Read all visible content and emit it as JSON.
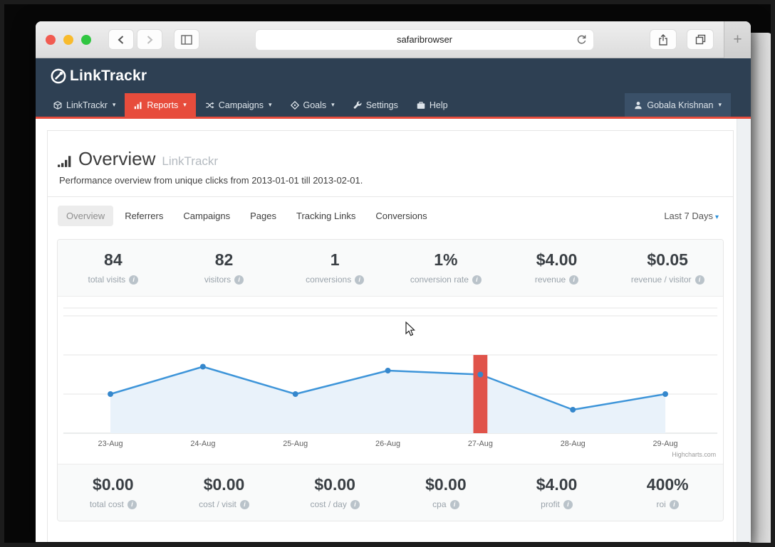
{
  "browser": {
    "url_text": "safaribrowser",
    "traffic_lights": {
      "close": "#f15b51",
      "minimize": "#f8bb2d",
      "zoom": "#30c641"
    }
  },
  "icons": {
    "caret": "▾",
    "info": "i",
    "plus": "+"
  },
  "brand": {
    "logo_text": "LinkTrackr"
  },
  "nav": {
    "items": [
      {
        "label": "LinkTrackr",
        "caret": "▾"
      },
      {
        "label": "Reports",
        "caret": "▾",
        "active": true
      },
      {
        "label": "Campaigns",
        "caret": "▾"
      },
      {
        "label": "Goals",
        "caret": "▾"
      },
      {
        "label": "Settings"
      },
      {
        "label": "Help"
      }
    ],
    "user": {
      "label": "Gobala Krishnan",
      "caret": "▾"
    }
  },
  "page": {
    "title": "Overview",
    "title_suffix": "LinkTrackr",
    "subtitle": "Performance overview from unique clicks from 2013-01-01 till 2013-02-01."
  },
  "tabs": {
    "items": [
      "Overview",
      "Referrers",
      "Campaigns",
      "Pages",
      "Tracking Links",
      "Conversions"
    ],
    "active": "Overview",
    "range_selector": "Last 7 Days"
  },
  "stats_top": [
    {
      "value": "84",
      "label": "total visits"
    },
    {
      "value": "82",
      "label": "visitors"
    },
    {
      "value": "1",
      "label": "conversions"
    },
    {
      "value": "1%",
      "label": "conversion rate"
    },
    {
      "value": "$4.00",
      "label": "revenue"
    },
    {
      "value": "$0.05",
      "label": "revenue / visitor"
    }
  ],
  "stats_bottom": [
    {
      "value": "$0.00",
      "label": "total cost"
    },
    {
      "value": "$0.00",
      "label": "cost / visit"
    },
    {
      "value": "$0.00",
      "label": "cost / day"
    },
    {
      "value": "$0.00",
      "label": "cpa"
    },
    {
      "value": "$4.00",
      "label": "profit"
    },
    {
      "value": "400%",
      "label": "roi"
    }
  ],
  "chart_data": {
    "type": "area",
    "title": "",
    "xlabel": "",
    "ylabel": "",
    "categories": [
      "23-Aug",
      "24-Aug",
      "25-Aug",
      "26-Aug",
      "27-Aug",
      "28-Aug",
      "29-Aug"
    ],
    "series": [
      {
        "name": "unique clicks",
        "values": [
          10,
          17,
          10,
          16,
          15,
          6,
          10
        ]
      }
    ],
    "ylim": [
      0,
      32
    ],
    "gridline_values": [
      10,
      20,
      30
    ],
    "grid": true,
    "legend": "none",
    "event_bar": {
      "category": "27-Aug",
      "value": 20,
      "color": "#e0534a"
    },
    "credit": "Highcharts.com",
    "line_color": "#3e95d9",
    "fill_color": "#e9f2fa",
    "marker_color": "#3587cc",
    "grid_color": "#e6e6e6",
    "axis_color": "#d4d8da",
    "tick_label_color": "#606060"
  },
  "colors": {
    "navbar": "#2e4053",
    "accent_red": "#e74c3c",
    "chart_blue": "#3e95d9",
    "stats_bg": "#f9fafa"
  }
}
